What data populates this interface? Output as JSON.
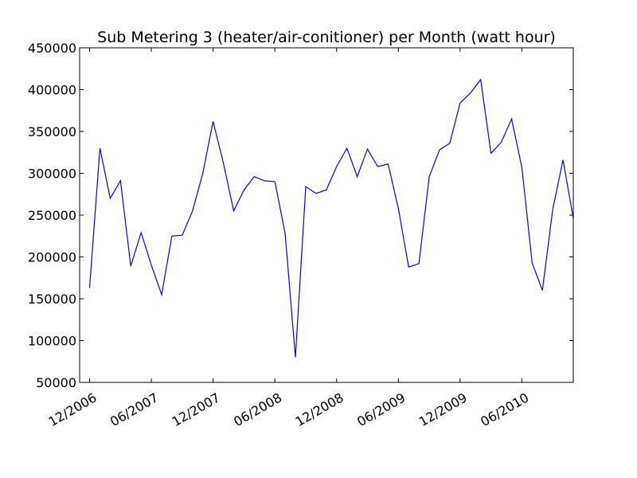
{
  "chart_data": {
    "type": "line",
    "title": "Sub Metering 3 (heater/air-conitioner) per Month (watt hour)",
    "xlabel": "",
    "ylabel": "",
    "ylim": [
      50000,
      450000
    ],
    "yticks": [
      50000,
      100000,
      150000,
      200000,
      250000,
      300000,
      350000,
      400000,
      450000
    ],
    "ytick_labels": [
      "50000",
      "100000",
      "150000",
      "200000",
      "250000",
      "300000",
      "350000",
      "400000",
      "450000"
    ],
    "xlim": [
      "2006-12",
      "2010-11"
    ],
    "xticks": [
      "2006-12",
      "2007-06",
      "2007-12",
      "2008-06",
      "2008-12",
      "2009-06",
      "2009-12",
      "2010-06"
    ],
    "xtick_labels": [
      "12/2006",
      "06/2007",
      "12/2007",
      "06/2008",
      "12/2008",
      "06/2009",
      "12/2009",
      "06/2010"
    ],
    "grid": false,
    "line_color": "#0000ff",
    "series": [
      {
        "x": [
          "2006-12",
          "2007-01",
          "2007-02",
          "2007-03",
          "2007-04",
          "2007-05",
          "2007-06",
          "2007-07",
          "2007-08",
          "2007-09",
          "2007-10",
          "2007-11",
          "2007-12",
          "2008-01",
          "2008-02",
          "2008-03",
          "2008-04",
          "2008-05",
          "2008-06",
          "2008-07",
          "2008-08",
          "2008-09",
          "2008-10",
          "2008-11",
          "2008-12",
          "2009-01",
          "2009-02",
          "2009-03",
          "2009-04",
          "2009-05",
          "2009-06",
          "2009-07",
          "2009-08",
          "2009-09",
          "2009-10",
          "2009-11",
          "2009-12",
          "2010-01",
          "2010-02",
          "2010-03",
          "2010-04",
          "2010-05",
          "2010-06",
          "2010-07",
          "2010-08",
          "2010-09",
          "2010-10",
          "2010-11"
        ],
        "values": [
          163000,
          330000,
          270000,
          291000,
          189000,
          229000,
          190000,
          155000,
          225000,
          226000,
          255000,
          300000,
          362000,
          312000,
          255000,
          280000,
          296000,
          291000,
          290000,
          228000,
          80000,
          284000,
          276000,
          280000,
          308000,
          330000,
          296000,
          329000,
          308000,
          311000,
          258000,
          188000,
          192000,
          296000,
          328000,
          336000,
          384000,
          396000,
          412000,
          324000,
          337000,
          365000,
          307000,
          193000,
          160000,
          257000,
          316000,
          246000
        ]
      }
    ]
  }
}
